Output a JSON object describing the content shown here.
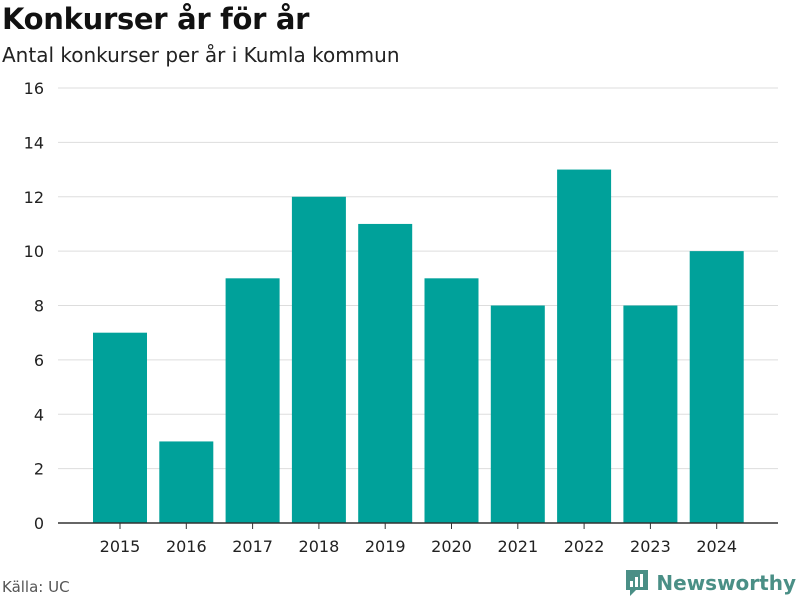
{
  "header": {
    "title": "Konkurser år för år",
    "subtitle": "Antal konkurser per år i Kumla kommun"
  },
  "footer": {
    "source": "Källa: UC",
    "brand": "Newsworthy"
  },
  "colors": {
    "bar": "#00a19a",
    "grid": "#dddddd",
    "axis": "#333333",
    "brand": "#4a8f86"
  },
  "chart_data": {
    "type": "bar",
    "title": "Konkurser år för år",
    "subtitle": "Antal konkurser per år i Kumla kommun",
    "categories": [
      "2015",
      "2016",
      "2017",
      "2018",
      "2019",
      "2020",
      "2021",
      "2022",
      "2023",
      "2024"
    ],
    "values": [
      7,
      3,
      9,
      12,
      11,
      9,
      8,
      13,
      8,
      10
    ],
    "ylim": [
      0,
      16
    ],
    "yticks": [
      0,
      2,
      4,
      6,
      8,
      10,
      12,
      14,
      16
    ],
    "grid": true
  }
}
